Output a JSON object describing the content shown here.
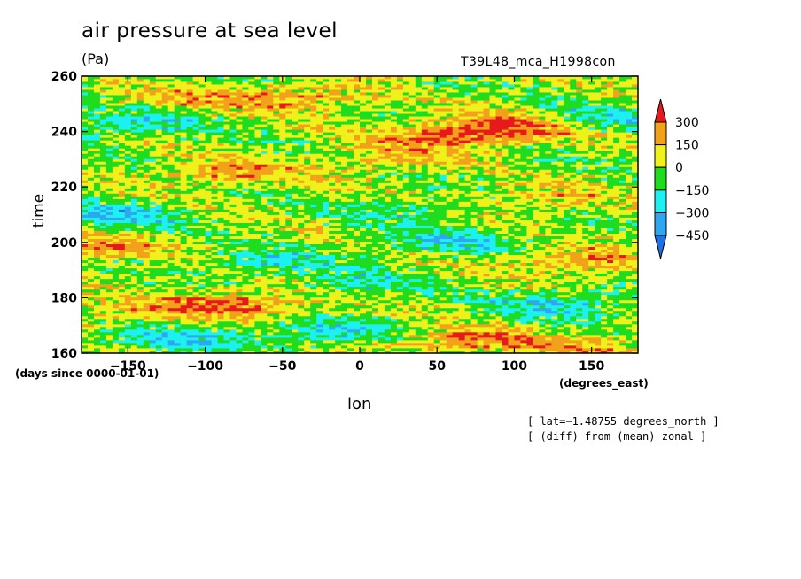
{
  "chart_data": {
    "type": "heatmap",
    "title": "air pressure at sea level",
    "units": "(Pa)",
    "run_label": "T39L48_mca_H1998con",
    "xlabel": "lon",
    "ylabel": "time",
    "x_units": "(degrees_east)",
    "y_units": "(days since 0000-01-01)",
    "xlim": [
      -180,
      180
    ],
    "ylim": [
      160,
      260
    ],
    "x_ticks": [
      -150,
      -100,
      -50,
      0,
      50,
      100,
      150
    ],
    "y_ticks": [
      160,
      180,
      200,
      220,
      240,
      260
    ],
    "colorbar": {
      "levels": [
        -450,
        -300,
        -150,
        0,
        150,
        300
      ],
      "labels": [
        "300",
        "150",
        "0",
        "−150",
        "−300",
        "−450"
      ],
      "colors": [
        "#1f6fe6",
        "#2ea6f0",
        "#1df0f0",
        "#1fdc1f",
        "#f0f01a",
        "#f2a21a",
        "#e61a1a"
      ]
    },
    "notes": [
      "[ lat=−1.48755 degrees_north ]",
      "[ (diff) from (mean) zonal ]"
    ],
    "features": [
      {
        "lon": -120,
        "time": 252,
        "value": 150
      },
      {
        "lon": -40,
        "time": 252,
        "value": 250
      },
      {
        "lon": 60,
        "time": 238,
        "value": 280
      },
      {
        "lon": 95,
        "time": 242,
        "value": 320
      },
      {
        "lon": -150,
        "time": 243,
        "value": -260
      },
      {
        "lon": 160,
        "time": 245,
        "value": -200
      },
      {
        "lon": -85,
        "time": 225,
        "value": 220
      },
      {
        "lon": 20,
        "time": 230,
        "value": 150
      },
      {
        "lon": -160,
        "time": 210,
        "value": -280
      },
      {
        "lon": 30,
        "time": 212,
        "value": -150
      },
      {
        "lon": 120,
        "time": 216,
        "value": 160
      },
      {
        "lon": -170,
        "time": 198,
        "value": 230
      },
      {
        "lon": -60,
        "time": 193,
        "value": -200
      },
      {
        "lon": 60,
        "time": 200,
        "value": -230
      },
      {
        "lon": 140,
        "time": 193,
        "value": 250
      },
      {
        "lon": 0,
        "time": 185,
        "value": -180
      },
      {
        "lon": -80,
        "time": 178,
        "value": 320
      },
      {
        "lon": -150,
        "time": 175,
        "value": 150
      },
      {
        "lon": 130,
        "time": 178,
        "value": -250
      },
      {
        "lon": -120,
        "time": 165,
        "value": -260
      },
      {
        "lon": -20,
        "time": 168,
        "value": -250
      },
      {
        "lon": 70,
        "time": 165,
        "value": 290
      },
      {
        "lon": 150,
        "time": 162,
        "value": 150
      }
    ]
  }
}
